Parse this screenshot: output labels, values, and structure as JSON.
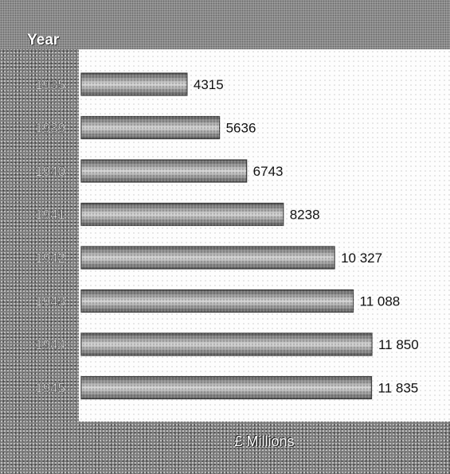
{
  "chart_data": {
    "type": "bar",
    "orientation": "horizontal",
    "title": "",
    "ylabel": "Year",
    "xlabel": "£ Millions",
    "categories": [
      "1935",
      "1939",
      "1940",
      "1941",
      "1942",
      "1943",
      "1944",
      "1945"
    ],
    "values": [
      4315,
      5636,
      6743,
      8238,
      10327,
      11088,
      11850,
      11835
    ],
    "value_labels": [
      "4315",
      "5636",
      "6743",
      "8238",
      "10 327",
      "11 088",
      "11 850",
      "11 835"
    ],
    "xlim": [
      0,
      15000
    ],
    "grid": false,
    "legend": "none"
  },
  "colors": {
    "bar": "#9e9e9e",
    "bar_edge": "#3c3c3c",
    "background": "#7c7c7c",
    "plot_area": "#fdfdfd"
  }
}
